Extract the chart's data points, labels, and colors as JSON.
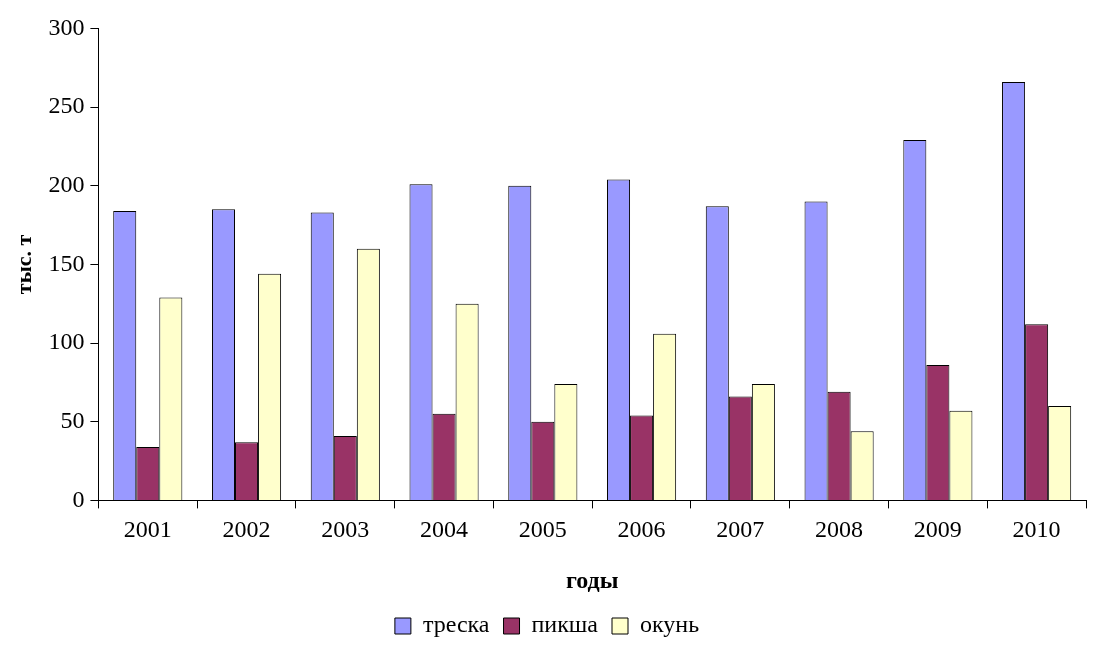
{
  "chart_data": {
    "type": "bar",
    "xlabel": "годы",
    "ylabel": "тыс. т",
    "categories": [
      "2001",
      "2002",
      "2003",
      "2004",
      "2005",
      "2006",
      "2007",
      "2008",
      "2009",
      "2010"
    ],
    "series": [
      {
        "name": "треска",
        "color": "#9999ff",
        "values": [
          184,
          185,
          183,
          201,
          200,
          204,
          187,
          190,
          229,
          266
        ]
      },
      {
        "name": "пикша",
        "color": "#993366",
        "values": [
          34,
          37,
          41,
          55,
          50,
          54,
          66,
          69,
          86,
          112
        ]
      },
      {
        "name": "окунь",
        "color": "#ffffcc",
        "values": [
          129,
          144,
          160,
          125,
          74,
          106,
          74,
          44,
          57,
          60
        ]
      }
    ],
    "ylim": [
      0,
      300
    ],
    "yticks": [
      0,
      50,
      100,
      150,
      200,
      250,
      300
    ],
    "legend": "bottom"
  }
}
